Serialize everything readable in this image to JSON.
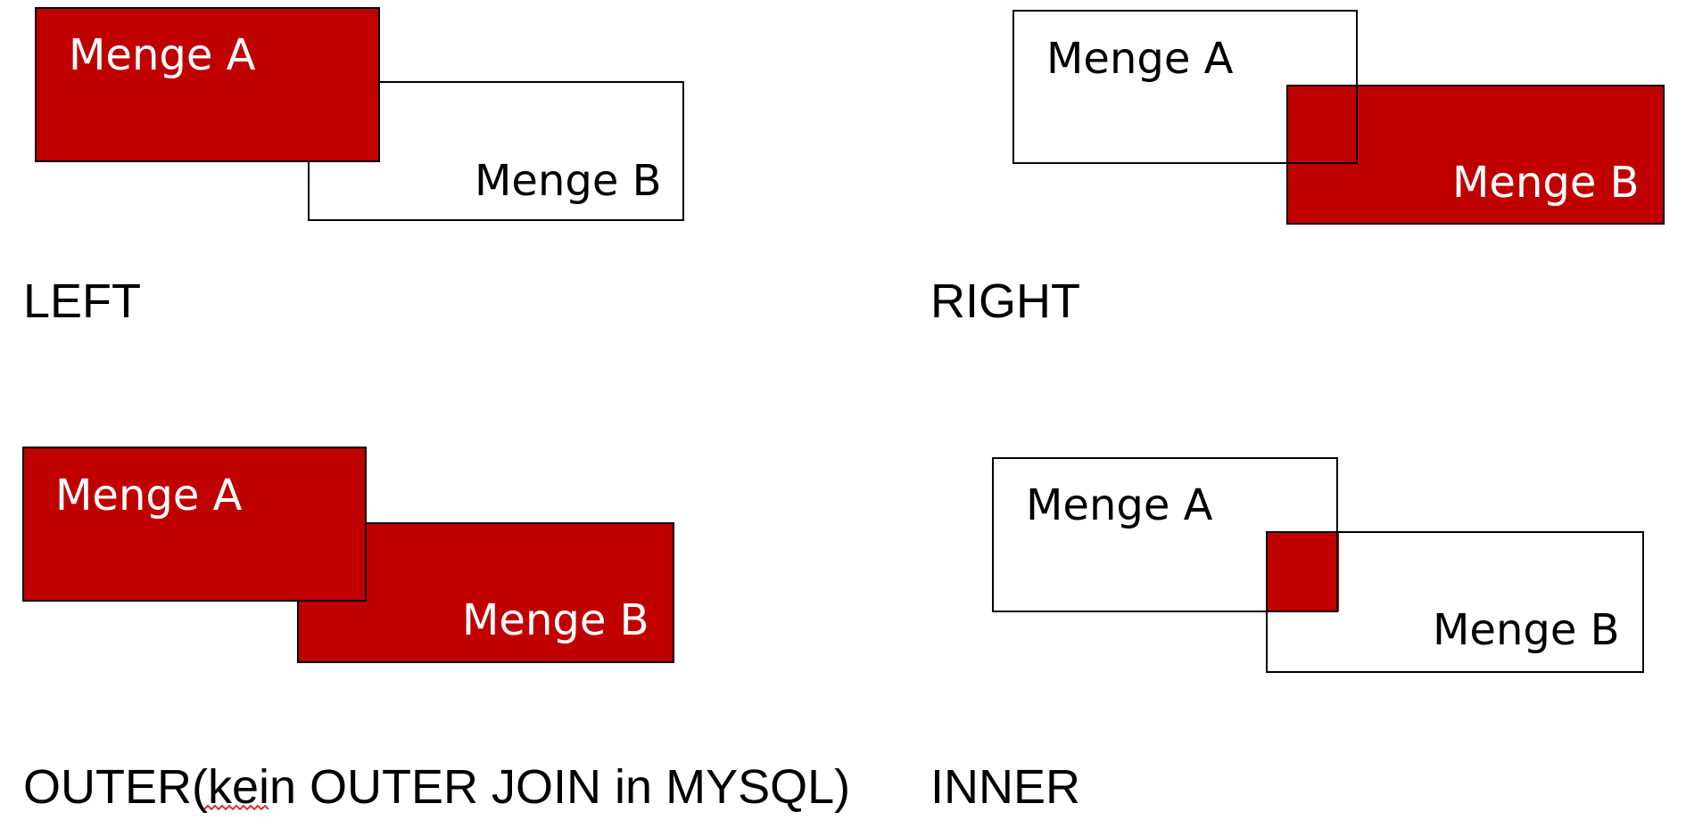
{
  "colors": {
    "highlight": "#c00000",
    "outline": "#000000",
    "label_on_fill": "#ffffff",
    "label_on_blank": "#000000",
    "spellcheck_underline": "#e03030"
  },
  "set_labels": {
    "a": "Menge A",
    "b": "Menge B"
  },
  "diagrams": {
    "left": {
      "caption": "LEFT",
      "highlighted_regions": [
        "A"
      ]
    },
    "right": {
      "caption": "RIGHT",
      "highlighted_regions": [
        "B"
      ]
    },
    "outer": {
      "caption_main": "OUTER(",
      "caption_flagged_word": "kein",
      "caption_rest": " OUTER JOIN in MYSQL)",
      "highlighted_regions": [
        "A",
        "B"
      ]
    },
    "inner": {
      "caption": "INNER",
      "highlighted_regions": [
        "A∩B"
      ]
    }
  }
}
